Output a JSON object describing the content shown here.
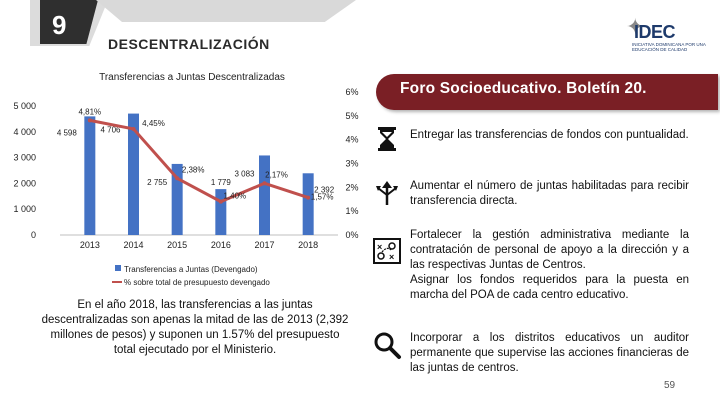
{
  "slide": {
    "number": "9",
    "section_title": "DESCENTRALIZACIÓN",
    "page_number": "59"
  },
  "logo": {
    "text": "IDEC",
    "subtitle": "INICIATIVA DOMINICANA POR UNA EDUCACIÓN DE CALIDAD"
  },
  "chart_data": {
    "type": "bar+line",
    "title": "Transferencias a Juntas Descentralizadas",
    "categories": [
      "2013",
      "2014",
      "2015",
      "2016",
      "2017",
      "2018"
    ],
    "series": [
      {
        "name": "Transferencias a Juntas (Devengado)",
        "axis": "left",
        "values": [
          4598,
          4706,
          2755,
          1779,
          3083,
          2392
        ],
        "labels": [
          "4 598",
          "4 706",
          "2 755",
          "1 779",
          "3 083",
          "2 392"
        ]
      },
      {
        "name": "% sobre total de presupuesto devengado",
        "axis": "right",
        "values": [
          4.81,
          4.45,
          2.38,
          1.4,
          2.17,
          1.57
        ],
        "labels": [
          "4,81%",
          "4,45%",
          "2,38%",
          "1,40%",
          "2,17%",
          "1,57%"
        ]
      }
    ],
    "y_left": {
      "range": [
        0,
        5000
      ],
      "ticks": [
        "0",
        "1 000",
        "2 000",
        "3 000",
        "4 000",
        "5 000"
      ]
    },
    "y_right": {
      "range": [
        0,
        6
      ],
      "ticks": [
        "0%",
        "1%",
        "2%",
        "3%",
        "4%",
        "5%",
        "6%"
      ]
    },
    "bar_color": "#4472c4",
    "line_color": "#c0504d",
    "legend_position": "bottom"
  },
  "summary_text": "En el año 2018, las transferencias a las juntas descentralizadas son apenas la mitad de las de 2013 (2,392 millones de pesos) y suponen un 1.57% del presupuesto total ejecutado por el Ministerio.",
  "banner": {
    "title": "Foro Socioeducativo. Boletín 20.",
    "color": "#7a1f25"
  },
  "recommendations": [
    {
      "icon": "hourglass-icon",
      "text": "Entregar las transferencias de fondos con puntualidad."
    },
    {
      "icon": "growth-arrows-icon",
      "text": "Aumentar el número de juntas habilitadas para recibir transferencia directa."
    },
    {
      "icon": "strategy-board-icon",
      "text": "Fortalecer la gestión administrativa mediante la contratación de personal de apoyo a la dirección y a las respectivas Juntas de Centros.",
      "text2": "Asignar los fondos requeridos para la puesta en marcha del POA de cada centro educativo."
    },
    {
      "icon": "magnifier-icon",
      "text": "Incorporar a los distritos educativos un auditor permanente que supervise las acciones financieras de las juntas de centros."
    }
  ]
}
